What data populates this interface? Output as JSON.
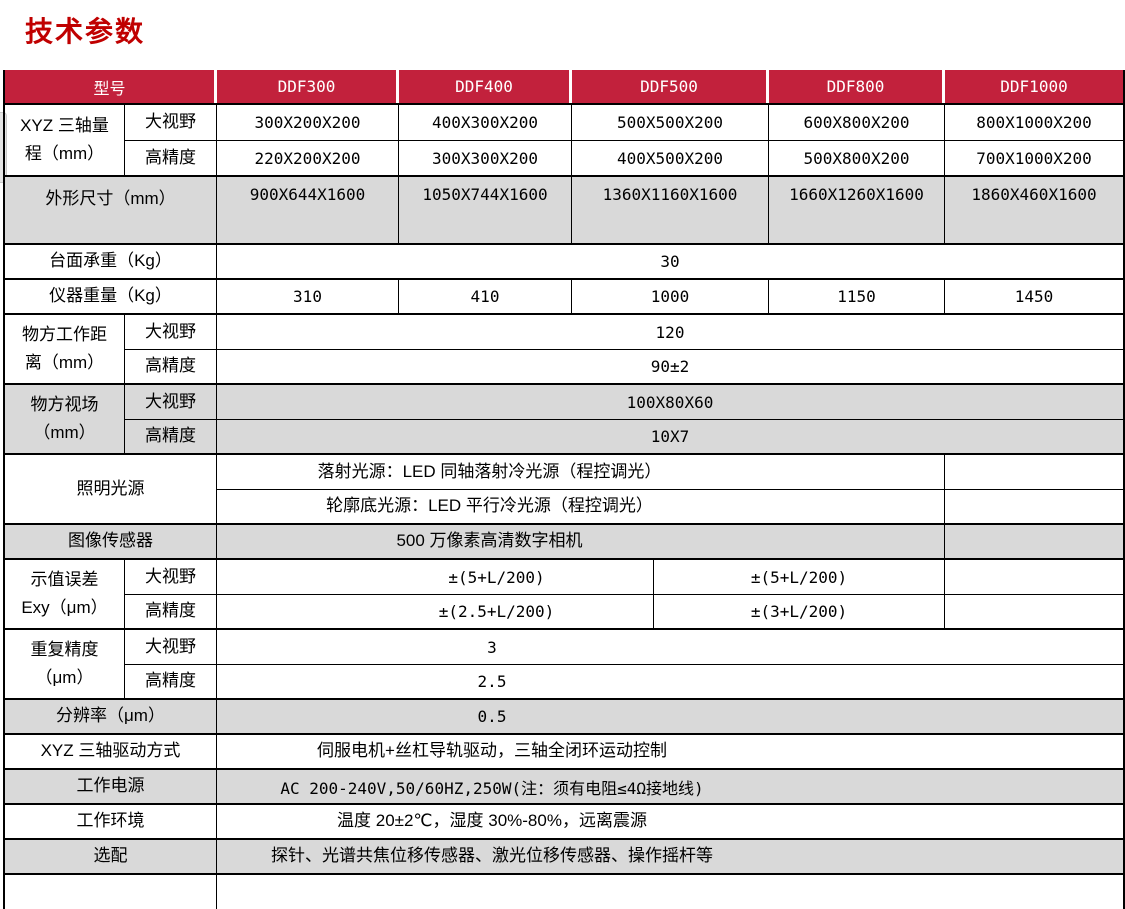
{
  "title": "技术参数",
  "header": {
    "model_label": "型号",
    "models": [
      "DDF300",
      "DDF400",
      "DDF500",
      "DDF800",
      "DDF1000"
    ]
  },
  "rows": {
    "xyz": {
      "label": "XYZ 三轴量\n程（mm）",
      "subs": [
        "大视野",
        "高精度"
      ],
      "big": [
        "300X200X200",
        "400X300X200",
        "500X500X200",
        "600X800X200",
        "800X1000X200"
      ],
      "hp": [
        "220X200X200",
        "300X300X200",
        "400X500X200",
        "500X800X200",
        "700X1000X200"
      ]
    },
    "dims": {
      "label": "外形尺寸（mm）",
      "values": [
        "900X644X1600",
        "1050X744X1600",
        "1360X1160X1600",
        "1660X1260X1600",
        "1860X460X1600"
      ]
    },
    "load": {
      "label": "台面承重（Kg）",
      "value": "30"
    },
    "weight": {
      "label": "仪器重量（Kg）",
      "values": [
        "310",
        "410",
        "1000",
        "1150",
        "1450"
      ]
    },
    "wd": {
      "label": "物方工作距\n离（mm）",
      "subs": [
        "大视野",
        "高精度"
      ],
      "values": [
        "120",
        "90±2"
      ]
    },
    "fov": {
      "label": "物方视场\n（mm）",
      "subs": [
        "大视野",
        "高精度"
      ],
      "values": [
        "100X80X60",
        "10X7"
      ]
    },
    "light": {
      "label": "照明光源",
      "lines": [
        "落射光源：LED 同轴落射冷光源（程控调光）",
        "轮廓底光源：LED 平行冷光源（程控调光）"
      ]
    },
    "sensor": {
      "label": "图像传感器",
      "value": "500 万像素高清数字相机"
    },
    "err": {
      "label": "示值误差\nExy（μm）",
      "subs": [
        "大视野",
        "高精度"
      ],
      "big": [
        "±(5+L/200)",
        "±(5+L/200)"
      ],
      "hp": [
        "±(2.5+L/200)",
        "±(3+L/200)"
      ]
    },
    "rep": {
      "label": "重复精度\n（μm）",
      "subs": [
        "大视野",
        "高精度"
      ],
      "values": [
        "3",
        "2.5"
      ]
    },
    "res": {
      "label": "分辨率（μm）",
      "value": "0.5"
    },
    "drive": {
      "label": "XYZ 三轴驱动方式",
      "value": "伺服电机+丝杠导轨驱动，三轴全闭环运动控制"
    },
    "power": {
      "label": "工作电源",
      "value": "AC 200-240V,50/60HZ,250W(注：须有电阻≤4Ω接地线)"
    },
    "env": {
      "label": "工作环境",
      "value": "温度 20±2℃，湿度 30%-80%，远离震源"
    },
    "opt": {
      "label": "选配",
      "value": "探针、光谱共焦位移传感器、激光位移传感器、操作摇杆等"
    }
  }
}
